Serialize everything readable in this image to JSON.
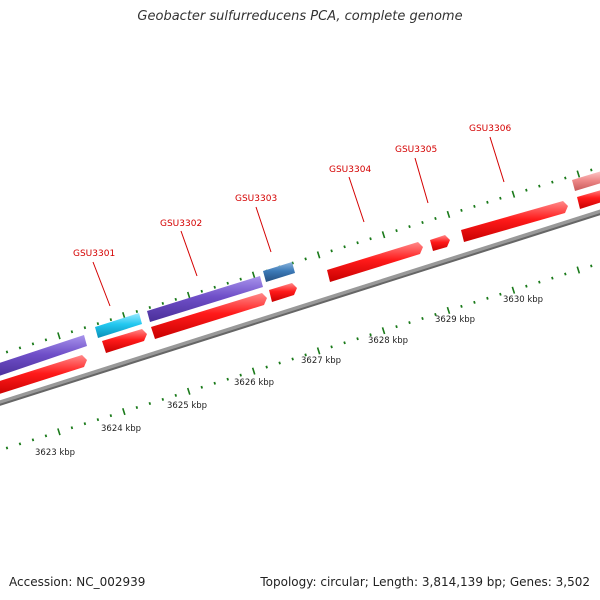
{
  "title": "Geobacter sulfurreducens PCA, complete genome",
  "footer": {
    "accession": "Accession: NC_002939",
    "summary": "Topology: circular; Length: 3,814,139 bp; Genes: 3,502"
  },
  "colors": {
    "backbone": "#777777",
    "tick": "#1a7a1a",
    "gene_label": "#d40000",
    "red_feature": "#ff1111",
    "purple_feature": "#6f4fc8",
    "cyan_feature": "#22c8f0",
    "steelblue_feature": "#3c7ab8",
    "pink_feature": "#ee8888"
  },
  "kbp_labels": [
    "3623 kbp",
    "3624 kbp",
    "3625 kbp",
    "3626 kbp",
    "3627 kbp",
    "3628 kbp",
    "3629 kbp",
    "3630 kbp"
  ],
  "gene_labels": [
    "GSU3301",
    "GSU3302",
    "GSU3303",
    "GSU3304",
    "GSU3305",
    "GSU3306"
  ]
}
